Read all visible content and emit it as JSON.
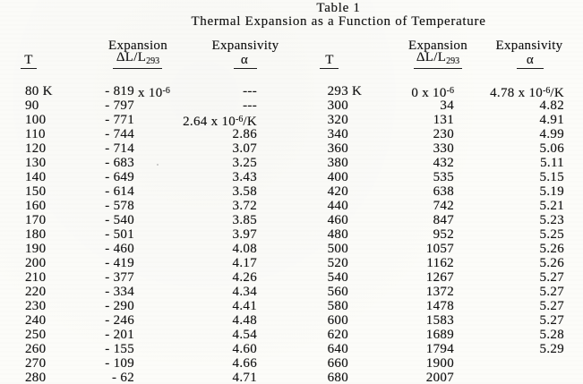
{
  "colors": {
    "ink": "#141414",
    "paper": "#fcfcf9"
  },
  "title": {
    "line1": "Table 1",
    "line2": "Thermal Expansion as a Function of Temperature"
  },
  "headers": {
    "t": "T",
    "expansion_word": "Expansion",
    "expansion_formula": "ΔL/L~293~",
    "expansivity_word": "Expansivity",
    "alpha": "α"
  },
  "table": {
    "left_rows": [
      [
        "80 K",
        "- 819| x 10^-6^",
        "---"
      ],
      [
        "90",
        "- 797",
        "---"
      ],
      [
        "100",
        "- 771",
        "2.64 x 10^-6^/K"
      ],
      [
        "110",
        "- 744",
        "2.86"
      ],
      [
        "120",
        "- 714",
        "3.07"
      ],
      [
        "130",
        "- 683",
        "3.25"
      ],
      [
        "140",
        "- 649",
        "3.43"
      ],
      [
        "150",
        "- 614",
        "3.58"
      ],
      [
        "160",
        "- 578",
        "3.72"
      ],
      [
        "170",
        "- 540",
        "3.85"
      ],
      [
        "180",
        "- 501",
        "3.97"
      ],
      [
        "190",
        "- 460",
        "4.08"
      ],
      [
        "200",
        "- 419",
        "4.17"
      ],
      [
        "210",
        "- 377",
        "4.26"
      ],
      [
        "220",
        "- 334",
        "4.34"
      ],
      [
        "230",
        "- 290",
        "4.41"
      ],
      [
        "240",
        "- 246",
        "4.48"
      ],
      [
        "250",
        "- 201",
        "4.54"
      ],
      [
        "260",
        "- 155",
        "4.60"
      ],
      [
        "270",
        "- 109",
        "4.66"
      ],
      [
        "280",
        "- 62",
        "4.71"
      ]
    ],
    "right_rows": [
      [
        "293| K",
        "0 x 10^-6^",
        "4.78 x 10^-6^/K"
      ],
      [
        "300",
        "34",
        "4.82"
      ],
      [
        "320",
        "131",
        "4.91"
      ],
      [
        "340",
        "230",
        "4.99"
      ],
      [
        "360",
        "330",
        "5.06"
      ],
      [
        "380",
        "432",
        "5.11"
      ],
      [
        "400",
        "535",
        "5.15"
      ],
      [
        "420",
        "638",
        "5.19"
      ],
      [
        "440",
        "742",
        "5.21"
      ],
      [
        "460",
        "847",
        "5.23"
      ],
      [
        "480",
        "952",
        "5.25"
      ],
      [
        "500",
        "1057",
        "5.26"
      ],
      [
        "520",
        "1162",
        "5.26"
      ],
      [
        "540",
        "1267",
        "5.27"
      ],
      [
        "560",
        "1372",
        "5.27"
      ],
      [
        "580",
        "1478",
        "5.27"
      ],
      [
        "600",
        "1583",
        "5.27"
      ],
      [
        "620",
        "1689",
        "5.28"
      ],
      [
        "640",
        "1794",
        "5.29"
      ],
      [
        "660",
        "1900",
        ""
      ],
      [
        "680",
        "2007",
        ""
      ]
    ]
  }
}
